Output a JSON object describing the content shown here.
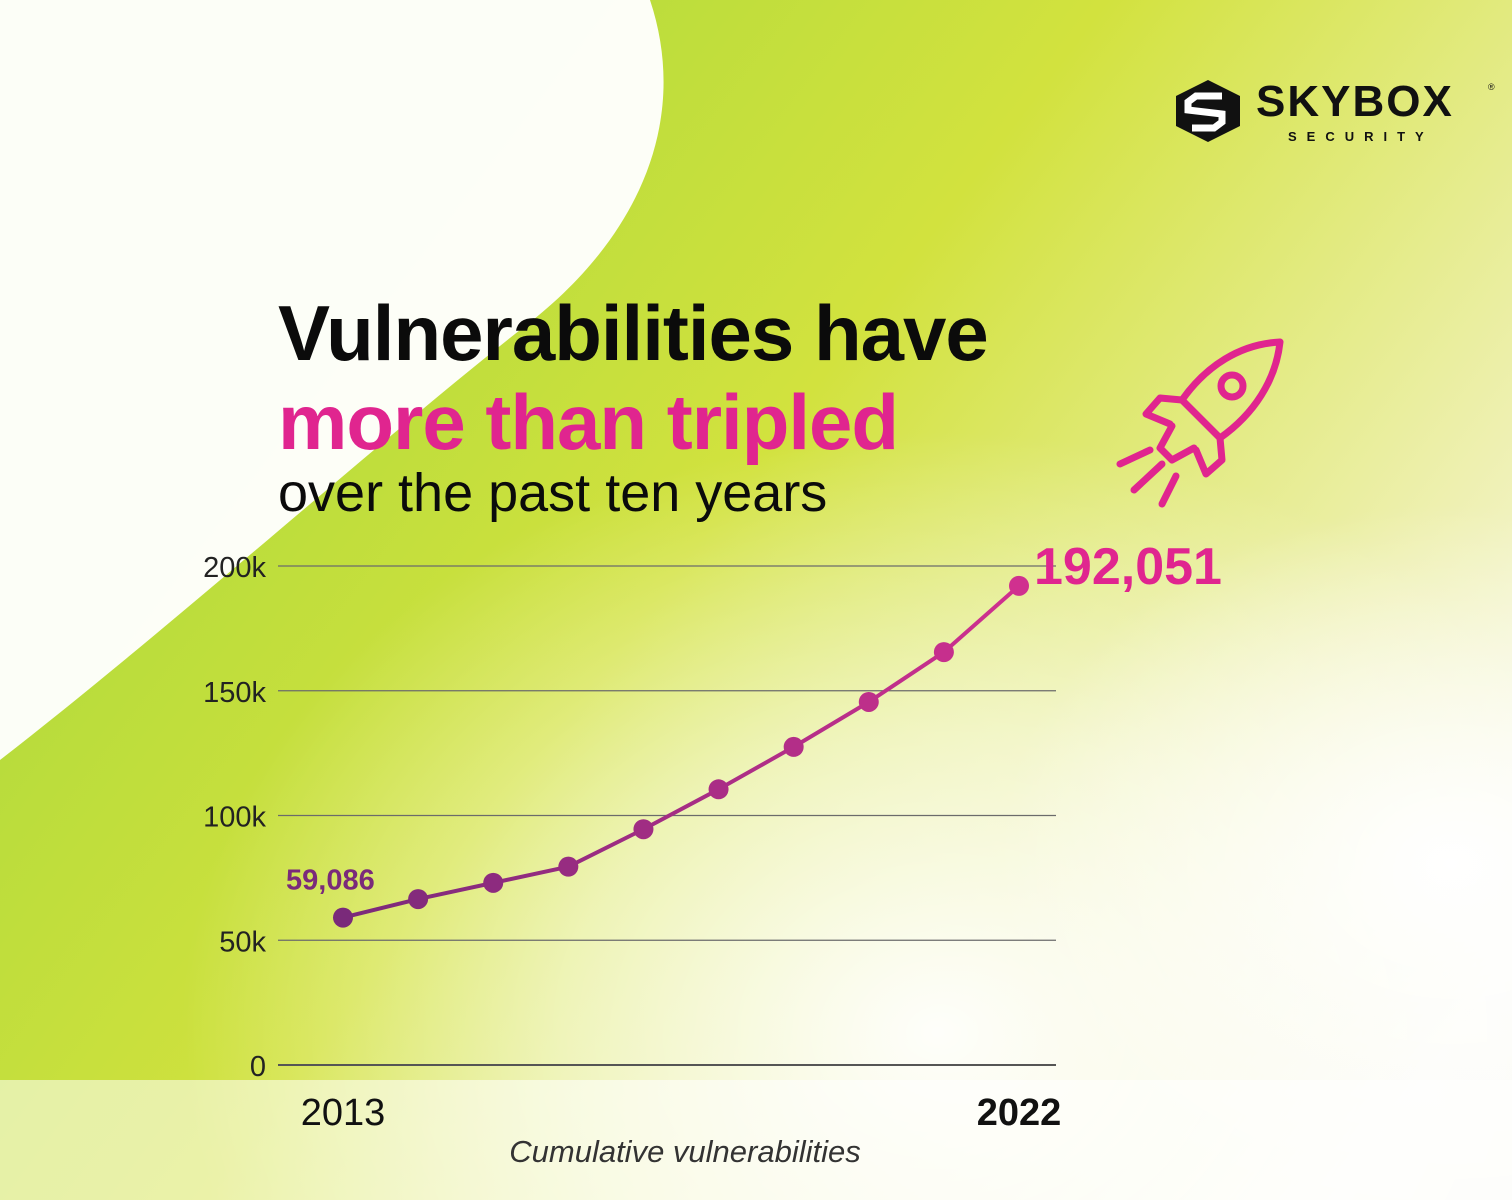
{
  "brand": {
    "name": "SKYBOX",
    "sub": "SECURITY",
    "registered": "®"
  },
  "headline": {
    "line1": "Vulnerabilities have",
    "line2": "more than tripled",
    "line3": "over the past ten years"
  },
  "icons": {
    "rocket": "rocket-icon",
    "logo": "skybox-logo-icon"
  },
  "colors": {
    "accent": "#e0258f",
    "line_start": "#7a2a7a",
    "line_end": "#d0308f",
    "lime": "#c5e03a"
  },
  "chart_data": {
    "type": "line",
    "title": "",
    "xlabel": "Cumulative vulnerabilities",
    "ylabel": "",
    "x": [
      2013,
      2014,
      2015,
      2016,
      2017,
      2018,
      2019,
      2020,
      2021,
      2022
    ],
    "x_tick_labels": [
      "2013",
      "2022"
    ],
    "y_ticks": [
      0,
      50000,
      100000,
      150000,
      200000
    ],
    "y_tick_labels": [
      "0",
      "50k",
      "100k",
      "150k",
      "200k"
    ],
    "ylim": [
      0,
      200000
    ],
    "grid": true,
    "series": [
      {
        "values": [
          59086,
          66500,
          73000,
          79500,
          94500,
          110500,
          127500,
          145500,
          165500,
          192051
        ]
      }
    ],
    "annotations": [
      {
        "x": 2013,
        "label": "59,086"
      },
      {
        "x": 2022,
        "label": "192,051"
      }
    ]
  }
}
